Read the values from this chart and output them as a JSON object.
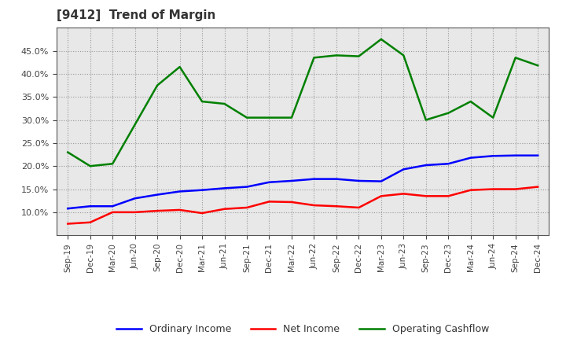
{
  "title": "[9412]  Trend of Margin",
  "x_labels": [
    "Sep-19",
    "Dec-19",
    "Mar-20",
    "Jun-20",
    "Sep-20",
    "Dec-20",
    "Mar-21",
    "Jun-21",
    "Sep-21",
    "Dec-21",
    "Mar-22",
    "Jun-22",
    "Sep-22",
    "Dec-22",
    "Mar-23",
    "Jun-23",
    "Sep-23",
    "Dec-23",
    "Mar-24",
    "Jun-24",
    "Sep-24",
    "Dec-24"
  ],
  "ordinary_income": [
    10.8,
    11.3,
    11.3,
    13.0,
    13.8,
    14.5,
    14.8,
    15.2,
    15.5,
    16.5,
    16.8,
    17.2,
    17.2,
    16.8,
    16.7,
    19.3,
    20.2,
    20.5,
    21.8,
    22.2,
    22.3,
    22.3
  ],
  "net_income": [
    7.5,
    7.8,
    10.0,
    10.0,
    10.3,
    10.5,
    9.8,
    10.7,
    11.0,
    12.3,
    12.2,
    11.5,
    11.3,
    11.0,
    13.5,
    14.0,
    13.5,
    13.5,
    14.8,
    15.0,
    15.0,
    15.5
  ],
  "operating_cashflow": [
    23.0,
    20.0,
    20.5,
    29.0,
    37.5,
    41.5,
    34.0,
    33.5,
    30.5,
    30.5,
    30.5,
    43.5,
    44.0,
    43.8,
    47.5,
    44.0,
    30.0,
    31.5,
    34.0,
    30.5,
    43.5,
    41.8
  ],
  "ordinary_color": "#0000ff",
  "net_income_color": "#ff0000",
  "operating_cashflow_color": "#008000",
  "background_color": "#ffffff",
  "plot_bg_color": "#e8e8e8",
  "grid_color": "#999999",
  "title_color": "#333333",
  "ylim": [
    5,
    50
  ],
  "yticks": [
    10.0,
    15.0,
    20.0,
    25.0,
    30.0,
    35.0,
    40.0,
    45.0
  ],
  "legend_labels": [
    "Ordinary Income",
    "Net Income",
    "Operating Cashflow"
  ]
}
